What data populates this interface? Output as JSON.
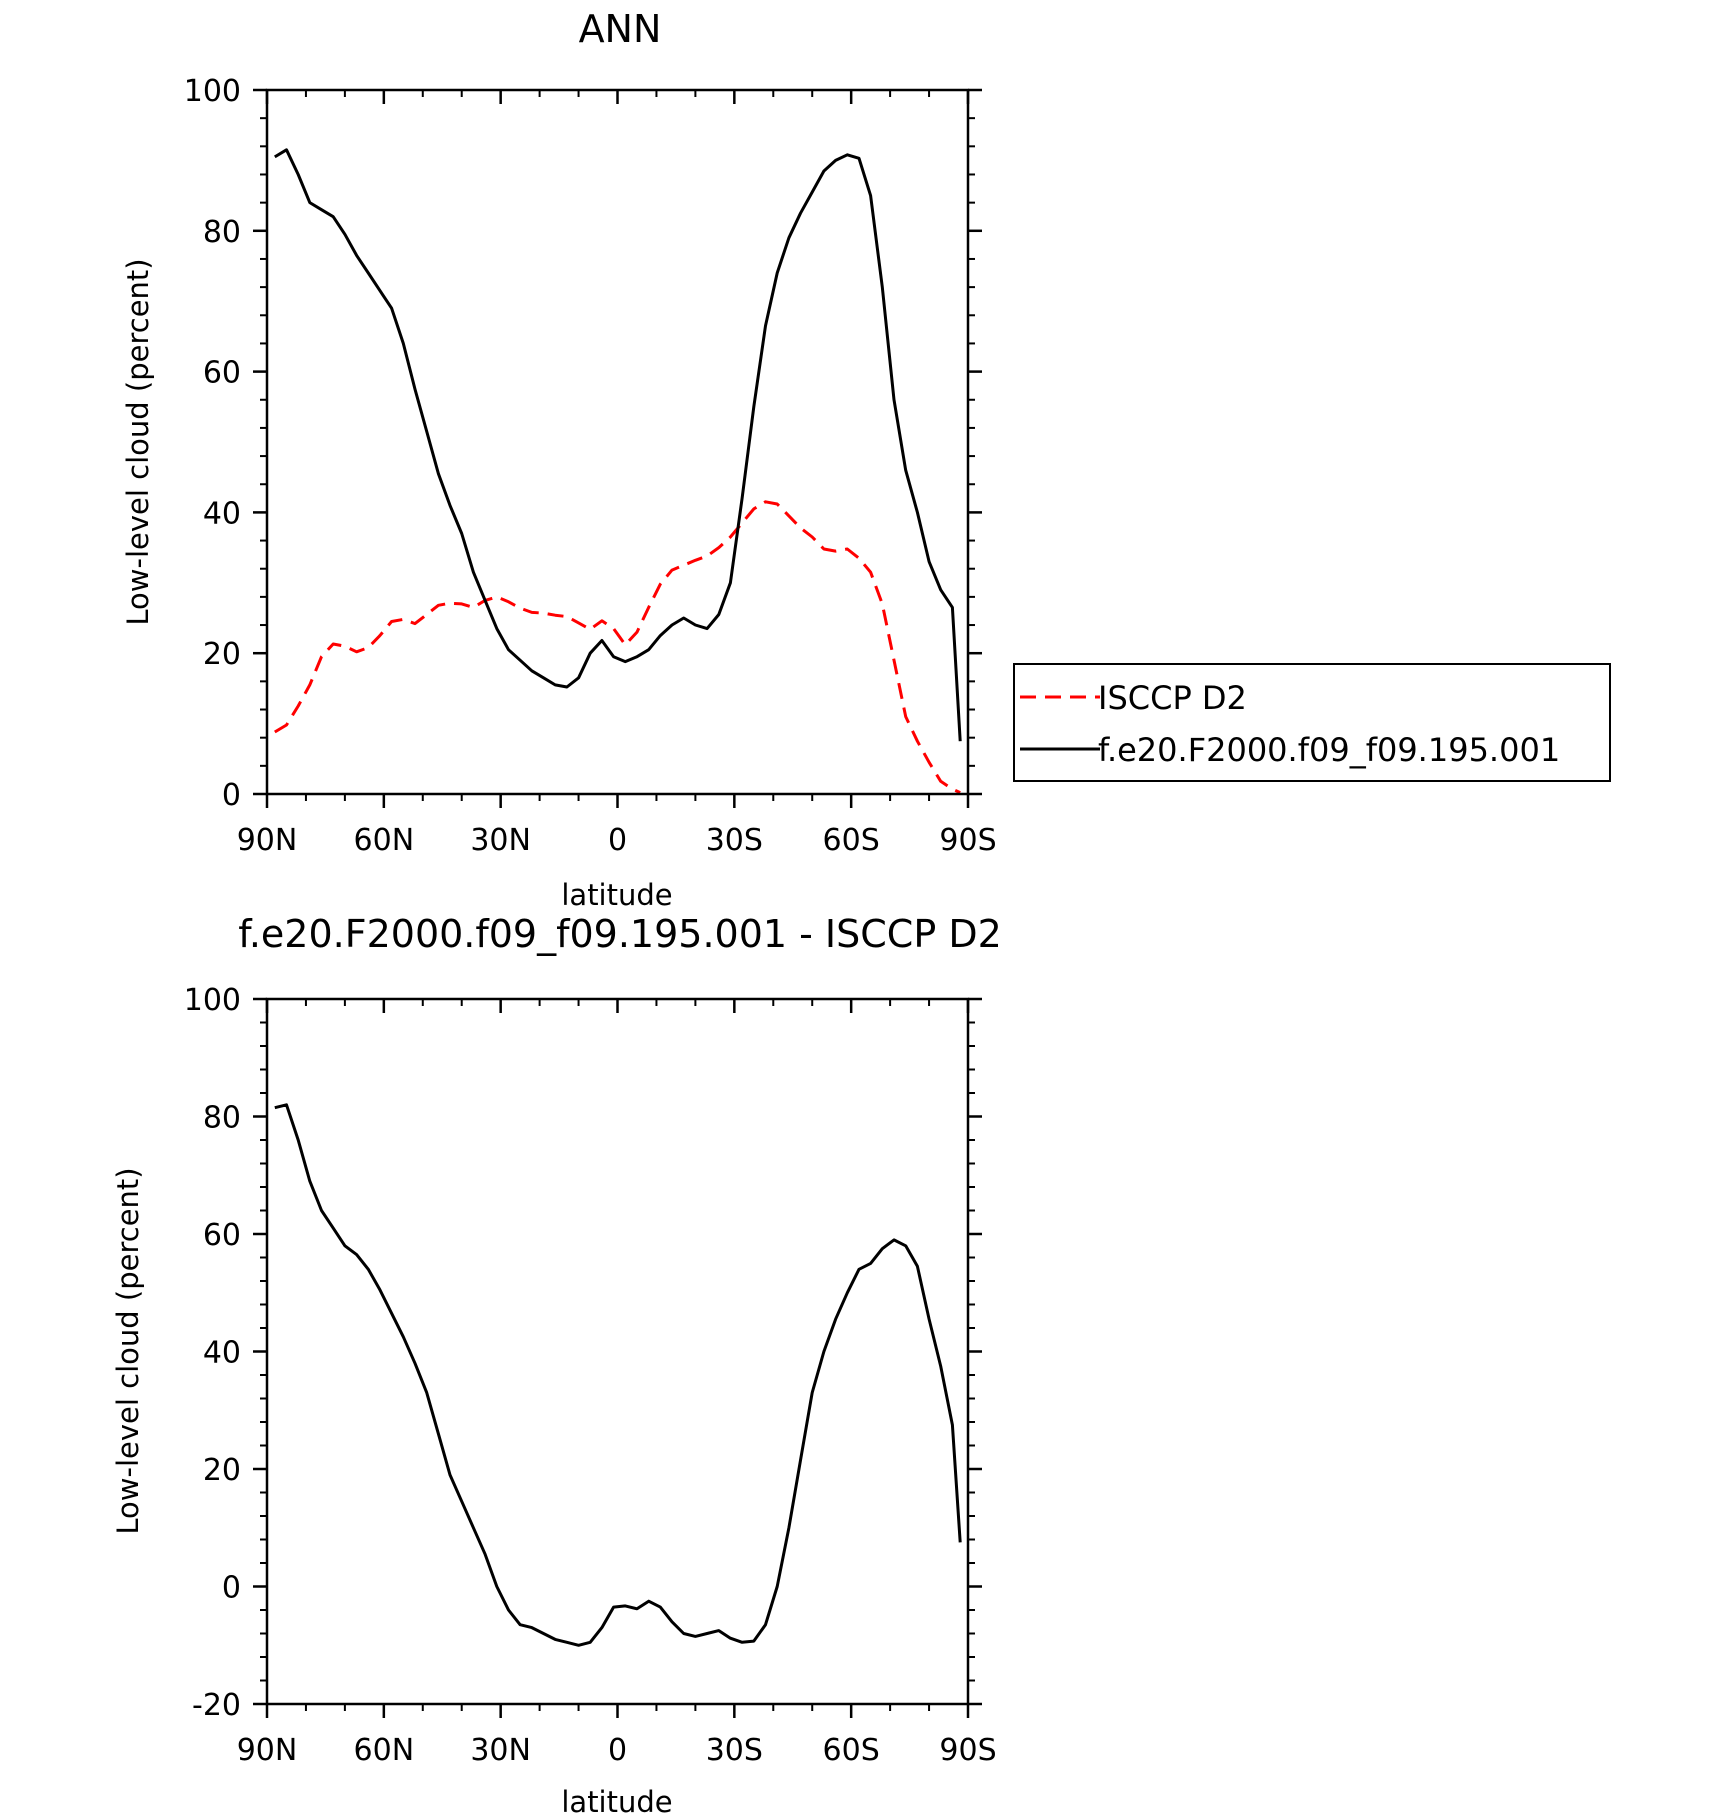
{
  "colors": {
    "obs": "#ff0000",
    "model": "#000000",
    "axis": "#000000",
    "background": "#ffffff"
  },
  "chart_data": [
    {
      "type": "line",
      "title": "ANN",
      "xlabel": "latitude",
      "ylabel": "Low-level cloud (percent)",
      "xlim": [
        90,
        -90
      ],
      "ylim": [
        0,
        100
      ],
      "x_ticks": [
        90,
        60,
        30,
        0,
        -30,
        -60,
        -90
      ],
      "x_tick_labels": [
        "90N",
        "60N",
        "30N",
        "0",
        "30S",
        "60S",
        "90S"
      ],
      "y_ticks": [
        0,
        20,
        40,
        60,
        80,
        100
      ],
      "y_tick_labels": [
        "0",
        "20",
        "40",
        "60",
        "80",
        "100"
      ],
      "grid": false,
      "legend": "right",
      "series": [
        {
          "name": "ISCCP D2",
          "style": "dashed",
          "color": "#ff0000",
          "x": [
            88,
            85,
            82,
            79,
            76,
            73,
            70,
            67,
            64,
            61,
            58,
            55,
            52,
            49,
            46,
            43,
            40,
            37,
            34,
            31,
            28,
            25,
            22,
            19,
            16,
            13,
            10,
            7,
            4,
            1,
            -2,
            -5,
            -8,
            -11,
            -14,
            -17,
            -20,
            -23,
            -26,
            -29,
            -32,
            -35,
            -38,
            -41,
            -44,
            -47,
            -50,
            -53,
            -56,
            -59,
            -62,
            -65,
            -68,
            -71,
            -74,
            -77,
            -80,
            -83,
            -86,
            -88
          ],
          "y": [
            8.8,
            9.8,
            12.5,
            15.5,
            19.5,
            21.3,
            21.0,
            20.2,
            20.8,
            22.5,
            24.5,
            24.8,
            24.2,
            25.5,
            26.8,
            27.1,
            27.0,
            26.5,
            27.5,
            28.0,
            27.3,
            26.4,
            25.8,
            25.7,
            25.4,
            25.2,
            24.3,
            23.4,
            24.6,
            23.5,
            21.2,
            23.0,
            26.5,
            29.8,
            31.8,
            32.5,
            33.2,
            33.8,
            35.0,
            36.5,
            38.5,
            40.5,
            41.5,
            41.2,
            39.5,
            37.8,
            36.5,
            34.8,
            34.5,
            34.8,
            33.5,
            31.5,
            27.0,
            19.0,
            11.0,
            7.5,
            4.5,
            1.8,
            0.7,
            0.2
          ]
        },
        {
          "name": "f.e20.F2000.f09_f09.195.001",
          "style": "solid",
          "color": "#000000",
          "x": [
            88,
            85,
            82,
            79,
            76,
            73,
            70,
            67,
            64,
            61,
            58,
            55,
            52,
            49,
            46,
            43,
            40,
            37,
            34,
            31,
            28,
            25,
            22,
            19,
            16,
            13,
            10,
            7,
            4,
            1,
            -2,
            -5,
            -8,
            -11,
            -14,
            -17,
            -20,
            -23,
            -26,
            -29,
            -32,
            -35,
            -38,
            -41,
            -44,
            -47,
            -50,
            -53,
            -56,
            -59,
            -62,
            -65,
            -68,
            -71,
            -74,
            -77,
            -80,
            -83,
            -86,
            -88
          ],
          "y": [
            90.5,
            91.5,
            88.0,
            84.0,
            83.0,
            82.0,
            79.5,
            76.5,
            74.0,
            71.5,
            69.0,
            64.0,
            57.5,
            51.5,
            45.5,
            41.0,
            37.0,
            31.5,
            27.5,
            23.5,
            20.5,
            19.0,
            17.5,
            16.5,
            15.5,
            15.2,
            16.5,
            20.0,
            21.8,
            19.5,
            18.8,
            19.5,
            20.5,
            22.5,
            24.0,
            25.0,
            24.0,
            23.5,
            25.5,
            30.0,
            42.0,
            55.0,
            66.5,
            74.0,
            79.0,
            82.5,
            85.5,
            88.5,
            90.0,
            90.8,
            90.3,
            85.0,
            72.0,
            56.0,
            46.0,
            40.0,
            33.0,
            29.0,
            26.5,
            7.5
          ]
        }
      ]
    },
    {
      "type": "line",
      "title": "f.e20.F2000.f09_f09.195.001 - ISCCP D2",
      "xlabel": "latitude",
      "ylabel": "Low-level cloud (percent)",
      "xlim": [
        90,
        -90
      ],
      "ylim": [
        -20,
        100
      ],
      "x_ticks": [
        90,
        60,
        30,
        0,
        -30,
        -60,
        -90
      ],
      "x_tick_labels": [
        "90N",
        "60N",
        "30N",
        "0",
        "30S",
        "60S",
        "90S"
      ],
      "y_ticks": [
        -20,
        0,
        20,
        40,
        60,
        80,
        100
      ],
      "y_tick_labels": [
        "-20",
        "0",
        "20",
        "40",
        "60",
        "80",
        "100"
      ],
      "grid": false,
      "series": [
        {
          "style": "solid",
          "color": "#000000",
          "x": [
            88,
            85,
            82,
            79,
            76,
            73,
            70,
            67,
            64,
            61,
            58,
            55,
            52,
            49,
            46,
            43,
            40,
            37,
            34,
            31,
            28,
            25,
            22,
            19,
            16,
            13,
            10,
            7,
            4,
            1,
            -2,
            -5,
            -8,
            -11,
            -14,
            -17,
            -20,
            -23,
            -26,
            -29,
            -32,
            -35,
            -38,
            -41,
            -44,
            -47,
            -50,
            -53,
            -56,
            -59,
            -62,
            -65,
            -68,
            -71,
            -74,
            -77,
            -80,
            -83,
            -86,
            -88
          ],
          "y": [
            81.5,
            82.0,
            76.0,
            69.0,
            64.0,
            61.0,
            58.0,
            56.5,
            54.0,
            50.5,
            46.5,
            42.5,
            38.0,
            33.0,
            26.0,
            19.0,
            14.5,
            10.0,
            5.5,
            0.0,
            -4.0,
            -6.5,
            -7.0,
            -8.0,
            -9.0,
            -9.5,
            -10.0,
            -9.5,
            -7.0,
            -3.5,
            -3.3,
            -3.8,
            -2.5,
            -3.5,
            -6.0,
            -8.0,
            -8.5,
            -8.0,
            -7.5,
            -8.8,
            -9.5,
            -9.3,
            -6.5,
            0.0,
            10.0,
            21.5,
            33.0,
            40.0,
            45.5,
            50.0,
            54.0,
            55.0,
            57.5,
            59.0,
            58.0,
            54.5,
            45.5,
            37.5,
            27.5,
            7.5
          ]
        }
      ]
    }
  ]
}
